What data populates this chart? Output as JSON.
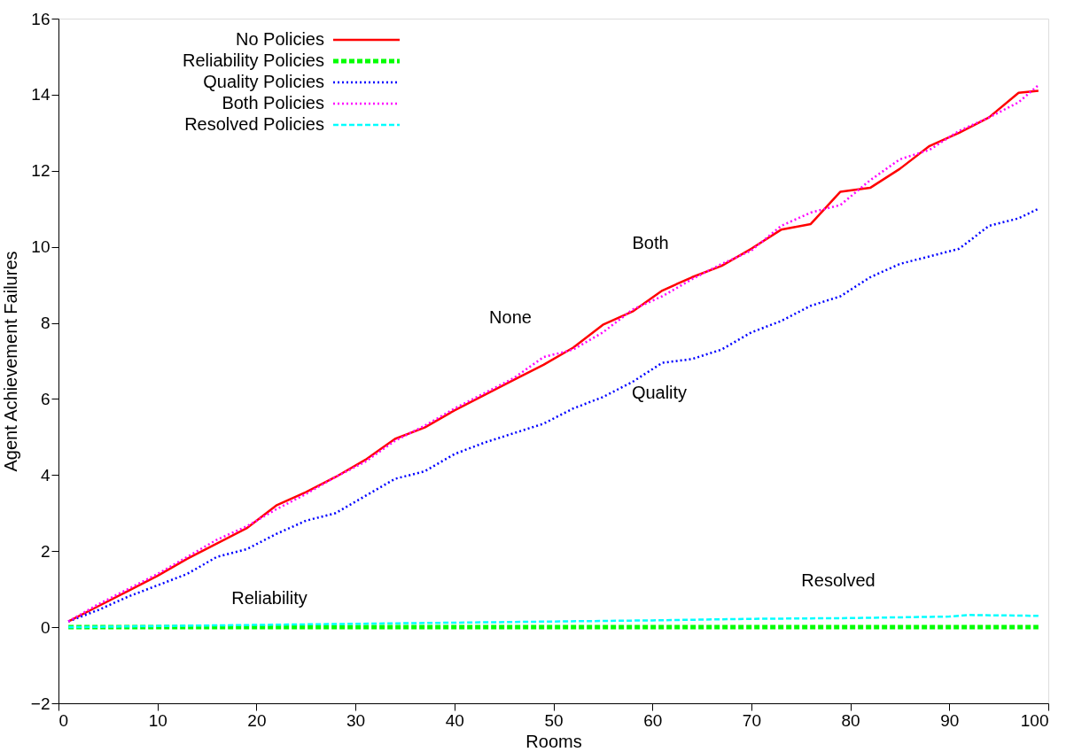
{
  "chart_data": {
    "type": "line",
    "xlabel": "Rooms",
    "ylabel": "Agent Achievement Failures",
    "xlim": [
      0,
      100
    ],
    "ylim": [
      -2,
      16
    ],
    "xticks": [
      0,
      10,
      20,
      30,
      40,
      50,
      60,
      70,
      80,
      90,
      100
    ],
    "yticks": [
      -2,
      0,
      2,
      4,
      6,
      8,
      10,
      12,
      14,
      16
    ],
    "grid": false,
    "legend": "top left",
    "marker": "none",
    "series": [
      {
        "name": "No Policies",
        "color": "#ff0000",
        "line_style": "solid",
        "x": [
          1,
          4,
          7,
          10,
          13,
          16,
          19,
          22,
          25,
          28,
          31,
          34,
          37,
          40,
          43,
          46,
          49,
          52,
          55,
          58,
          61,
          64,
          67,
          70,
          73,
          76,
          79,
          82,
          85,
          88,
          91,
          94,
          97,
          99
        ],
        "values": [
          0.15,
          0.55,
          0.95,
          1.35,
          1.8,
          2.2,
          2.6,
          3.2,
          3.55,
          3.95,
          4.4,
          4.95,
          5.25,
          5.7,
          6.1,
          6.5,
          6.9,
          7.35,
          7.95,
          8.3,
          8.85,
          9.2,
          9.5,
          9.95,
          10.45,
          10.6,
          11.45,
          11.55,
          12.05,
          12.65,
          13.0,
          13.4,
          14.05,
          14.1
        ]
      },
      {
        "name": "Reliability Policies",
        "color": "#00ff00",
        "line_style": "dashed",
        "x": [
          1,
          99
        ],
        "values": [
          0,
          0
        ]
      },
      {
        "name": "Quality Policies",
        "color": "#0000ff",
        "line_style": "dotted",
        "x": [
          1,
          4,
          7,
          10,
          13,
          16,
          19,
          22,
          25,
          28,
          31,
          34,
          37,
          40,
          43,
          46,
          49,
          52,
          55,
          58,
          61,
          64,
          67,
          70,
          73,
          76,
          79,
          82,
          85,
          88,
          91,
          94,
          97,
          99
        ],
        "values": [
          0.15,
          0.45,
          0.8,
          1.1,
          1.4,
          1.85,
          2.05,
          2.45,
          2.8,
          3.0,
          3.45,
          3.9,
          4.1,
          4.55,
          4.85,
          5.1,
          5.35,
          5.75,
          6.05,
          6.45,
          6.95,
          7.05,
          7.3,
          7.75,
          8.05,
          8.45,
          8.7,
          9.2,
          9.55,
          9.75,
          9.95,
          10.55,
          10.75,
          11.0
        ]
      },
      {
        "name": "Both Policies",
        "color": "#ff00ff",
        "line_style": "dotted",
        "x": [
          1,
          4,
          7,
          10,
          13,
          16,
          19,
          22,
          25,
          28,
          31,
          34,
          37,
          40,
          43,
          46,
          49,
          52,
          55,
          58,
          61,
          64,
          67,
          70,
          73,
          76,
          79,
          82,
          85,
          88,
          91,
          94,
          97,
          99
        ],
        "values": [
          0.15,
          0.6,
          1.0,
          1.4,
          1.85,
          2.3,
          2.65,
          3.1,
          3.5,
          3.95,
          4.35,
          4.9,
          5.3,
          5.75,
          6.15,
          6.55,
          7.1,
          7.3,
          7.75,
          8.35,
          8.7,
          9.15,
          9.55,
          9.9,
          10.55,
          10.9,
          11.1,
          11.75,
          12.3,
          12.55,
          13.05,
          13.4,
          13.8,
          14.25
        ]
      },
      {
        "name": "Resolved Policies",
        "color": "#00ffff",
        "line_style": "dashed",
        "x": [
          1,
          10,
          20,
          30,
          40,
          50,
          60,
          70,
          80,
          90,
          92,
          99
        ],
        "values": [
          0.0,
          0.03,
          0.06,
          0.09,
          0.12,
          0.15,
          0.18,
          0.22,
          0.24,
          0.28,
          0.32,
          0.3
        ]
      }
    ],
    "annotations": [
      "None",
      "Both",
      "Quality",
      "Reliability",
      "Resolved"
    ]
  }
}
